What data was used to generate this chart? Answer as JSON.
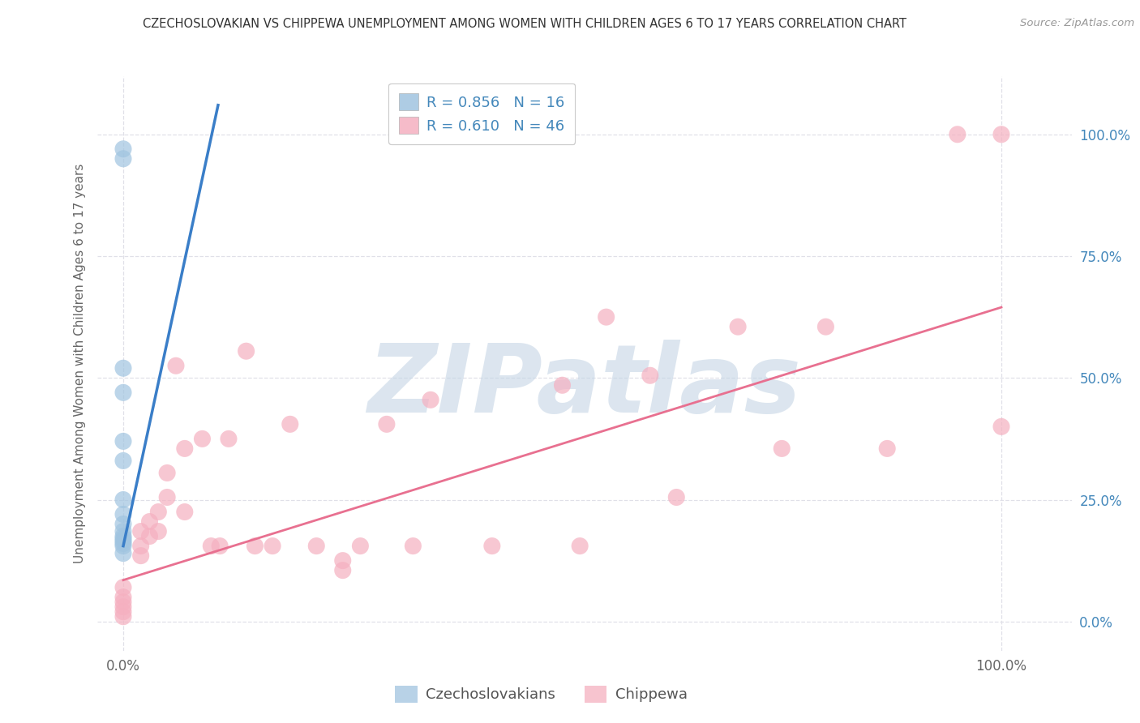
{
  "title": "CZECHOSLOVAKIAN VS CHIPPEWA UNEMPLOYMENT AMONG WOMEN WITH CHILDREN AGES 6 TO 17 YEARS CORRELATION CHART",
  "source": "Source: ZipAtlas.com",
  "ylabel": "Unemployment Among Women with Children Ages 6 to 17 years",
  "ytick_values": [
    0.0,
    0.25,
    0.5,
    0.75,
    1.0
  ],
  "ytick_labels": [
    "0.0%",
    "25.0%",
    "50.0%",
    "75.0%",
    "100.0%"
  ],
  "xtick_values": [
    0.0,
    1.0
  ],
  "xtick_labels": [
    "0.0%",
    "100.0%"
  ],
  "xlim": [
    -0.03,
    1.08
  ],
  "ylim": [
    -0.06,
    1.12
  ],
  "background_color": "#ffffff",
  "grid_color": "#e0e0e8",
  "watermark_text": "ZIPatlas",
  "watermark_color": "#c5d5e5",
  "legend_label1": "R = 0.856   N = 16",
  "legend_label2": "R = 0.610   N = 46",
  "legend_r_color": "#4488bb",
  "series1_color": "#a0c4e0",
  "series2_color": "#f5b0c0",
  "line1_color": "#3a7ec8",
  "line2_color": "#e87090",
  "czechoslovakians_scatter": [
    [
      0.0,
      0.97
    ],
    [
      0.0,
      0.95
    ],
    [
      0.0,
      0.52
    ],
    [
      0.0,
      0.47
    ],
    [
      0.0,
      0.37
    ],
    [
      0.0,
      0.33
    ],
    [
      0.0,
      0.25
    ],
    [
      0.0,
      0.22
    ],
    [
      0.0,
      0.2
    ],
    [
      0.0,
      0.185
    ],
    [
      0.0,
      0.175
    ],
    [
      0.0,
      0.17
    ],
    [
      0.0,
      0.165
    ],
    [
      0.0,
      0.16
    ],
    [
      0.0,
      0.155
    ],
    [
      0.0,
      0.14
    ]
  ],
  "chippewa_scatter": [
    [
      0.0,
      0.07
    ],
    [
      0.0,
      0.05
    ],
    [
      0.0,
      0.04
    ],
    [
      0.0,
      0.03
    ],
    [
      0.0,
      0.02
    ],
    [
      0.0,
      0.01
    ],
    [
      0.02,
      0.185
    ],
    [
      0.02,
      0.155
    ],
    [
      0.02,
      0.135
    ],
    [
      0.03,
      0.205
    ],
    [
      0.03,
      0.175
    ],
    [
      0.04,
      0.225
    ],
    [
      0.04,
      0.185
    ],
    [
      0.05,
      0.305
    ],
    [
      0.05,
      0.255
    ],
    [
      0.06,
      0.525
    ],
    [
      0.07,
      0.355
    ],
    [
      0.07,
      0.225
    ],
    [
      0.09,
      0.375
    ],
    [
      0.1,
      0.155
    ],
    [
      0.11,
      0.155
    ],
    [
      0.12,
      0.375
    ],
    [
      0.14,
      0.555
    ],
    [
      0.15,
      0.155
    ],
    [
      0.17,
      0.155
    ],
    [
      0.19,
      0.405
    ],
    [
      0.22,
      0.155
    ],
    [
      0.25,
      0.125
    ],
    [
      0.25,
      0.105
    ],
    [
      0.27,
      0.155
    ],
    [
      0.3,
      0.405
    ],
    [
      0.33,
      0.155
    ],
    [
      0.35,
      0.455
    ],
    [
      0.42,
      0.155
    ],
    [
      0.5,
      0.485
    ],
    [
      0.52,
      0.155
    ],
    [
      0.55,
      0.625
    ],
    [
      0.6,
      0.505
    ],
    [
      0.63,
      0.255
    ],
    [
      0.7,
      0.605
    ],
    [
      0.75,
      0.355
    ],
    [
      0.8,
      0.605
    ],
    [
      0.87,
      0.355
    ],
    [
      0.95,
      1.0
    ],
    [
      1.0,
      1.0
    ],
    [
      1.0,
      0.4
    ]
  ],
  "blue_line": [
    [
      0.0,
      0.155
    ],
    [
      0.108,
      1.06
    ]
  ],
  "pink_line": [
    [
      0.0,
      0.085
    ],
    [
      1.0,
      0.645
    ]
  ]
}
